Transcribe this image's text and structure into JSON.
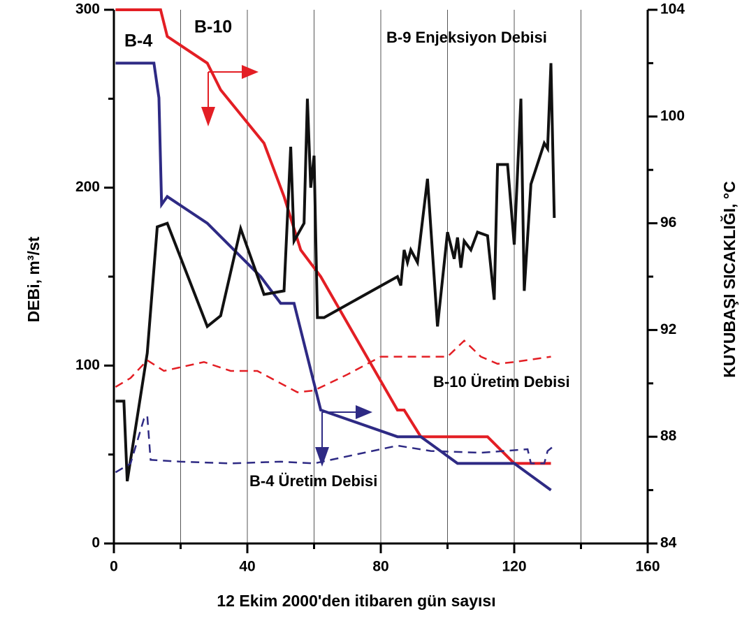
{
  "chart_data": {
    "type": "line",
    "title": "B-9 Enjeksiyon Debisi",
    "xlabel": "12 Ekim 2000'den itibaren gün sayısı",
    "ylabel": "DEBi, m³/st",
    "y2label": "KUYUBAŞI SICAKLIĞI, °C",
    "xlim": [
      0,
      160
    ],
    "xticks": [
      0,
      40,
      80,
      120,
      160
    ],
    "xminor": [
      20,
      60,
      100,
      140
    ],
    "xgrid": [
      20,
      40,
      60,
      80,
      100,
      120,
      140
    ],
    "ylim": [
      0,
      300
    ],
    "yticks": [
      0,
      100,
      200,
      300
    ],
    "yminor": [
      50,
      150,
      250
    ],
    "y2lim": [
      84,
      104
    ],
    "y2ticks": [
      84,
      88,
      92,
      96,
      100,
      104
    ],
    "y2minor": [
      86,
      90,
      94,
      98,
      102
    ],
    "series": [
      {
        "name": "B-10",
        "color": "#e31e24",
        "axis": "y2",
        "dashed": false,
        "x": [
          0.5,
          14,
          16,
          28,
          32,
          45,
          51,
          56,
          62,
          85,
          87,
          92,
          112,
          120,
          131
        ],
        "values": [
          104,
          104,
          103,
          102,
          101,
          99,
          97,
          95,
          94,
          89,
          89,
          88,
          88,
          87,
          87
        ]
      },
      {
        "name": "B-4",
        "color": "#2e2a84",
        "axis": "y2",
        "dashed": false,
        "x": [
          0.5,
          12,
          13.5,
          14.3,
          16,
          28,
          44,
          50,
          54,
          62,
          85,
          92,
          103,
          120,
          131
        ],
        "values": [
          102,
          102,
          100.7,
          96.7,
          97,
          96,
          94,
          93,
          93,
          89,
          88,
          88,
          87,
          87,
          86
        ]
      },
      {
        "name": "B-9 Enjeksiyon Debisi",
        "color": "#111111",
        "axis": "y",
        "dashed": false,
        "x": [
          0.5,
          3,
          4,
          10,
          13,
          16,
          28,
          32,
          38,
          45,
          51,
          53,
          54,
          57,
          58,
          59,
          60,
          61,
          63,
          85,
          86,
          87,
          88,
          89,
          91,
          94,
          97,
          100,
          102,
          103,
          104,
          105,
          107,
          109,
          112,
          114,
          115,
          118,
          120,
          122,
          123,
          125,
          129,
          130,
          131,
          132
        ],
        "values": [
          80,
          80,
          35,
          107,
          178,
          180,
          122,
          128,
          177,
          140,
          142,
          223,
          170,
          180,
          250,
          200,
          218,
          127,
          127,
          150,
          145,
          165,
          158,
          165,
          158,
          205,
          122,
          175,
          160,
          172,
          155,
          170,
          165,
          175,
          173,
          137,
          213,
          213,
          168,
          250,
          142,
          202,
          225,
          222,
          270,
          183
        ]
      },
      {
        "name": "B-10 Üretim Debisi",
        "color": "#e31e24",
        "axis": "y",
        "dashed": true,
        "x": [
          0.5,
          5,
          10,
          15,
          27,
          35,
          43,
          50,
          55,
          60,
          70,
          80,
          100,
          105,
          110,
          115,
          120,
          131
        ],
        "values": [
          88,
          93,
          103,
          97,
          102,
          97,
          97,
          90,
          85,
          86,
          95,
          105,
          105,
          114,
          105,
          101,
          102,
          105
        ]
      },
      {
        "name": "B-4 Üretim Debisi",
        "color": "#2e2a84",
        "axis": "y",
        "dashed": true,
        "x": [
          0.5,
          5,
          9,
          10,
          11,
          20,
          35,
          50,
          60,
          75,
          85,
          95,
          110,
          124,
          125,
          129,
          130,
          132
        ],
        "values": [
          40,
          45,
          70,
          72,
          47,
          46,
          45,
          46,
          45,
          51,
          55,
          52,
          51,
          53,
          45,
          45,
          52,
          55
        ]
      }
    ]
  }
}
